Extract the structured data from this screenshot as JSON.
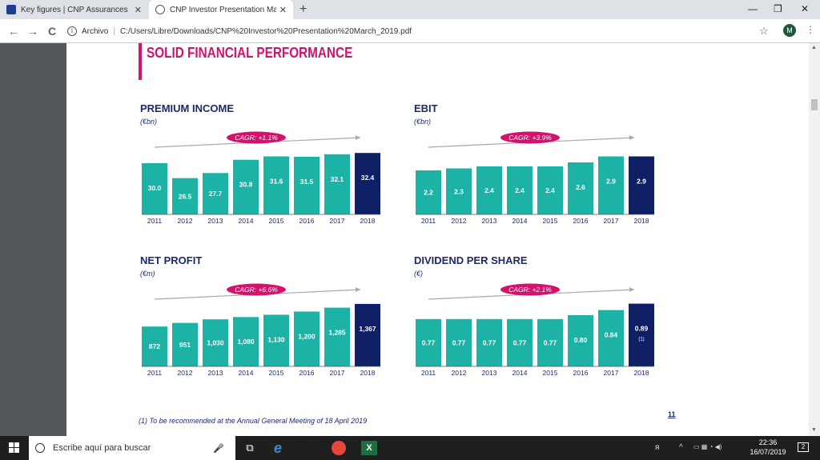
{
  "browser": {
    "tabs": [
      {
        "title": "Key figures | CNP Assurances",
        "close": "✕"
      },
      {
        "title": "CNP Investor Presentation March",
        "close": "✕"
      }
    ],
    "new_tab": "+",
    "window_controls": {
      "minimize": "—",
      "restore": "❐",
      "close": "✕"
    },
    "nav": {
      "back": "←",
      "forward": "→",
      "reload": "C"
    },
    "address": {
      "scheme_label": "Archivo",
      "separator": "|",
      "url": "C:/Users/Libre/Downloads/CNP%20Investor%20Presentation%20March_2019.pdf"
    },
    "bookmark": "☆",
    "profile_initial": "M",
    "menu": "⋮"
  },
  "slide": {
    "title": "SOLID FINANCIAL PERFORMANCE",
    "footnote": "(1) To be recommended at the Annual General Meeting of 18 April 2019",
    "page_number": "11",
    "colors": {
      "bar": "#1cb3a6",
      "highlight": "#0f1f66",
      "accent": "#d4126e",
      "navy": "#1b2a6b"
    }
  },
  "chart_data": [
    {
      "type": "bar",
      "title": "PREMIUM INCOME",
      "unit": "(€bn)",
      "cagr": "CAGR: +1.1%",
      "categories": [
        "2011",
        "2012",
        "2013",
        "2014",
        "2015",
        "2016",
        "2017",
        "2018"
      ],
      "values": [
        30.0,
        26.5,
        27.7,
        30.8,
        31.6,
        31.5,
        32.1,
        32.4
      ],
      "labels": [
        "30.0",
        "26.5",
        "27.7",
        "30.8",
        "31.6",
        "31.5",
        "32.1",
        "32.4"
      ],
      "baseline": 18,
      "ymax": 33
    },
    {
      "type": "bar",
      "title": "EBIT",
      "unit": "(€bn)",
      "cagr": "CAGR: +3.9%",
      "categories": [
        "2011",
        "2012",
        "2013",
        "2014",
        "2015",
        "2016",
        "2017",
        "2018"
      ],
      "values": [
        2.2,
        2.3,
        2.4,
        2.4,
        2.4,
        2.6,
        2.9,
        2.9
      ],
      "labels": [
        "2.2",
        "2.3",
        "2.4",
        "2.4",
        "2.4",
        "2.6",
        "2.9",
        "2.9"
      ],
      "baseline": 0,
      "ymax": 3.2
    },
    {
      "type": "bar",
      "title": "NET PROFIT",
      "unit": "(€m)",
      "cagr": "CAGR: +6.6%",
      "categories": [
        "2011",
        "2012",
        "2013",
        "2014",
        "2015",
        "2016",
        "2017",
        "2018"
      ],
      "values": [
        872,
        951,
        1030,
        1080,
        1130,
        1200,
        1285,
        1367
      ],
      "labels": [
        "872",
        "951",
        "1,030",
        "1,080",
        "1,130",
        "1,200",
        "1,285",
        "1,367"
      ],
      "baseline": 0,
      "ymax": 1400
    },
    {
      "type": "bar",
      "title": "DIVIDEND PER SHARE",
      "unit": "(€)",
      "cagr": "CAGR: +2.1%",
      "categories": [
        "2011",
        "2012",
        "2013",
        "2014",
        "2015",
        "2016",
        "2017",
        "2018"
      ],
      "values": [
        0.77,
        0.77,
        0.77,
        0.77,
        0.77,
        0.8,
        0.84,
        0.89
      ],
      "labels": [
        "0.77",
        "0.77",
        "0.77",
        "0.77",
        "0.77",
        "0.80",
        "0.84",
        "0.89"
      ],
      "note_last": "(1)",
      "baseline": 0.4,
      "ymax": 0.9
    }
  ],
  "taskbar": {
    "search_placeholder": "Escribe aquí para buscar",
    "mic": "🎤",
    "task_view": "⧉",
    "ie": "e",
    "excel": "X",
    "tray": {
      "people": "ᴙ",
      "chevron": "^",
      "ime": "ESP"
    },
    "time": "22:36",
    "date": "16/07/2019",
    "notifications": "2"
  }
}
